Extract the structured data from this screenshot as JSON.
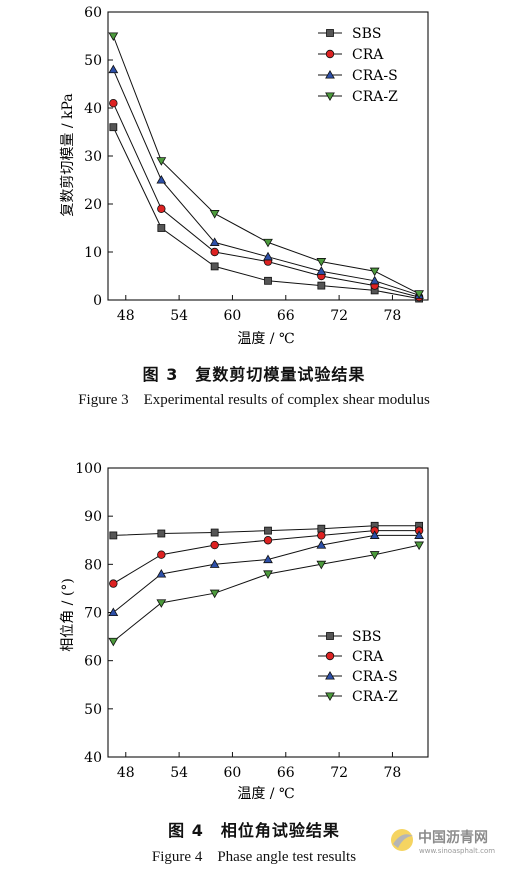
{
  "colors": {
    "SBS": "#555555",
    "CRA": "#dd2222",
    "CRA-S": "#2c4fa8",
    "CRA-Z": "#4c9a3c"
  },
  "figure3": {
    "caption_zh": "图 3　复数剪切模量试验结果",
    "caption_en": "Figure 3　Experimental results of complex shear modulus"
  },
  "figure4": {
    "caption_zh": "图 4　相位角试验结果",
    "caption_en": "Figure 4　Phase angle test results"
  },
  "watermark": {
    "text": "中国沥青网",
    "url": "www.sinoasphalt.com"
  },
  "chart_data": [
    {
      "type": "line",
      "xlabel": "温度 / ℃",
      "ylabel": "复数剪切模量 / kPa",
      "xlim": [
        46,
        82
      ],
      "ylim": [
        0,
        60
      ],
      "xticks": [
        48,
        54,
        60,
        66,
        72,
        78
      ],
      "yticks": [
        0,
        10,
        20,
        30,
        40,
        50,
        60
      ],
      "legend": "top-right",
      "grid": false,
      "x": [
        46.6,
        52,
        58,
        64,
        70,
        76,
        81
      ],
      "series": [
        {
          "name": "SBS",
          "marker": "square",
          "values": [
            36,
            15,
            7,
            4,
            3,
            2,
            0.3
          ]
        },
        {
          "name": "CRA",
          "marker": "circle",
          "values": [
            41,
            19,
            10,
            8,
            5,
            3,
            0.6
          ]
        },
        {
          "name": "CRA-S",
          "marker": "triangle-up",
          "values": [
            48,
            25,
            12,
            9,
            6,
            4,
            1.0
          ]
        },
        {
          "name": "CRA-Z",
          "marker": "triangle-down",
          "values": [
            55,
            29,
            18,
            12,
            8,
            6,
            1.3
          ]
        }
      ]
    },
    {
      "type": "line",
      "xlabel": "温度 / ℃",
      "ylabel": "相位角 / (°)",
      "xlim": [
        46,
        82
      ],
      "ylim": [
        40,
        100
      ],
      "xticks": [
        48,
        54,
        60,
        66,
        72,
        78
      ],
      "yticks": [
        40,
        50,
        60,
        70,
        80,
        90,
        100
      ],
      "legend": "lower-right",
      "grid": false,
      "x": [
        46.6,
        52,
        58,
        64,
        70,
        76,
        81
      ],
      "series": [
        {
          "name": "SBS",
          "marker": "square",
          "values": [
            86,
            86.4,
            86.6,
            87,
            87.4,
            88,
            88
          ]
        },
        {
          "name": "CRA",
          "marker": "circle",
          "values": [
            76,
            82,
            84,
            85,
            86,
            87,
            87
          ]
        },
        {
          "name": "CRA-S",
          "marker": "triangle-up",
          "values": [
            70,
            78,
            80,
            81,
            84,
            86,
            86
          ]
        },
        {
          "name": "CRA-Z",
          "marker": "triangle-down",
          "values": [
            64,
            72,
            74,
            78,
            80,
            82,
            84
          ]
        }
      ]
    }
  ]
}
